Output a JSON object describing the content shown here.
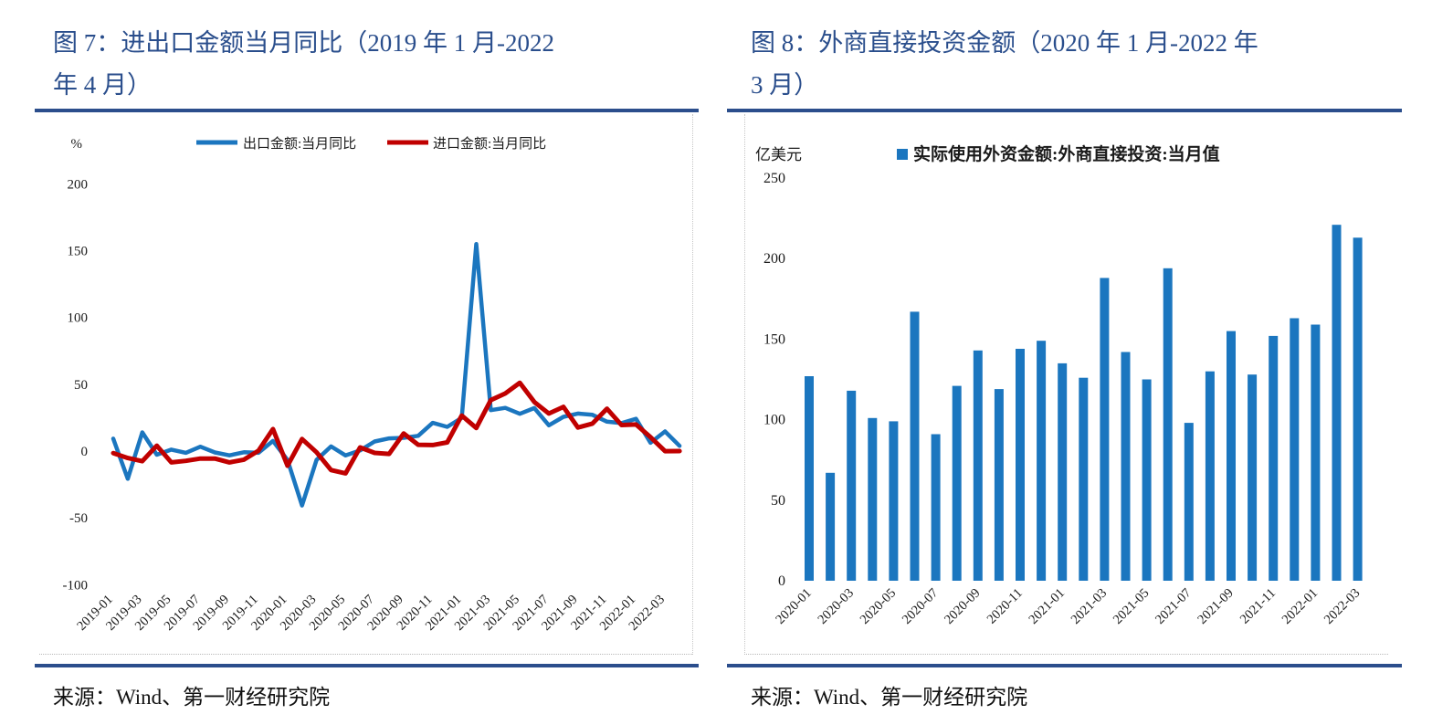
{
  "panels": [
    {
      "title_lines": [
        "图 7：进出口金额当月同比（2019 年 1 月-2022",
        "年 4 月）"
      ],
      "source": "来源：Wind、第一财经研究院"
    },
    {
      "title_lines": [
        "图 8：外商直接投资金额（2020 年 1 月-2022 年",
        "3 月）"
      ],
      "source": "来源：Wind、第一财经研究院"
    }
  ],
  "colors": {
    "title_navy": "#2A4E8C",
    "rule_navy": "#2B4E8C",
    "export_blue": "#1B76BF",
    "import_red": "#C00000",
    "fdi_bar_blue": "#1B76BF",
    "axis_text": "#1a1a1a"
  },
  "chart_data": [
    {
      "type": "line",
      "title": "进出口金额当月同比",
      "unit_label": "%",
      "ylim": [
        -100,
        200
      ],
      "yticks": [
        200,
        150,
        100,
        50,
        0,
        -50,
        -100
      ],
      "grid": false,
      "legend_position": "top",
      "xtick_every": 2,
      "x": [
        "2019-01",
        "2019-02",
        "2019-03",
        "2019-04",
        "2019-05",
        "2019-06",
        "2019-07",
        "2019-08",
        "2019-09",
        "2019-10",
        "2019-11",
        "2019-12",
        "2020-01",
        "2020-02",
        "2020-03",
        "2020-04",
        "2020-05",
        "2020-06",
        "2020-07",
        "2020-08",
        "2020-09",
        "2020-10",
        "2020-11",
        "2020-12",
        "2021-01",
        "2021-02",
        "2021-03",
        "2021-04",
        "2021-05",
        "2021-06",
        "2021-07",
        "2021-08",
        "2021-09",
        "2021-10",
        "2021-11",
        "2021-12",
        "2022-01",
        "2022-02",
        "2022-03",
        "2022-04"
      ],
      "series": [
        {
          "name": "出口金额:当月同比",
          "color": "#1B76BF",
          "values": [
            9.3,
            -20.8,
            14.0,
            -2.7,
            1.1,
            -1.3,
            3.3,
            -1.0,
            -3.2,
            -0.9,
            -1.3,
            7.6,
            -6.6,
            -40.7,
            -6.6,
            3.5,
            -3.3,
            0.5,
            7.2,
            9.5,
            9.9,
            11.4,
            21.1,
            18.1,
            24.8,
            154.9,
            30.6,
            32.3,
            27.9,
            32.2,
            19.3,
            25.6,
            28.1,
            27.1,
            22.0,
            20.9,
            24.1,
            6.2,
            14.7,
            3.9
          ]
        },
        {
          "name": "进口金额:当月同比",
          "color": "#C00000",
          "values": [
            -1.5,
            -5.2,
            -7.6,
            4.0,
            -8.5,
            -7.3,
            -5.6,
            -5.6,
            -8.5,
            -6.4,
            0.3,
            16.5,
            -11.0,
            9.0,
            -0.9,
            -14.2,
            -16.7,
            2.7,
            -1.4,
            -2.1,
            13.2,
            4.7,
            4.5,
            6.5,
            26.6,
            17.3,
            38.1,
            43.1,
            51.1,
            36.7,
            28.1,
            33.1,
            17.6,
            20.6,
            31.7,
            19.5,
            19.9,
            10.4,
            -0.1,
            0.0
          ]
        }
      ]
    },
    {
      "type": "bar",
      "title": "外商直接投资金额",
      "unit_label": "亿美元",
      "legend": "实际使用外资金额:外商直接投资:当月值",
      "color": "#1B76BF",
      "ylim": [
        0,
        250
      ],
      "yticks": [
        250,
        200,
        150,
        100,
        50,
        0
      ],
      "grid": false,
      "xtick_every": 2,
      "categories": [
        "2020-01",
        "2020-02",
        "2020-03",
        "2020-04",
        "2020-05",
        "2020-06",
        "2020-07",
        "2020-08",
        "2020-09",
        "2020-10",
        "2020-11",
        "2020-12",
        "2021-01",
        "2021-02",
        "2021-03",
        "2021-04",
        "2021-05",
        "2021-06",
        "2021-07",
        "2021-08",
        "2021-09",
        "2021-10",
        "2021-11",
        "2021-12",
        "2022-01",
        "2022-02",
        "2022-03"
      ],
      "values": [
        127,
        67,
        118,
        101,
        99,
        167,
        91,
        121,
        143,
        119,
        144,
        149,
        135,
        126,
        188,
        142,
        125,
        194,
        98,
        130,
        155,
        128,
        152,
        163,
        159,
        221,
        213
      ]
    }
  ]
}
